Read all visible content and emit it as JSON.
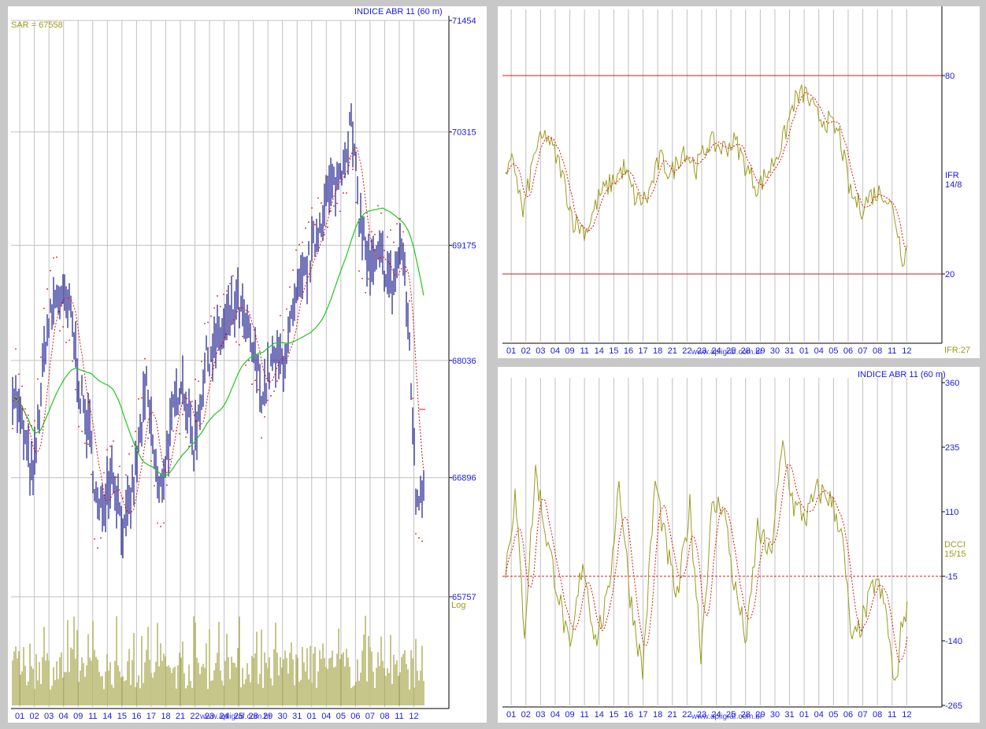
{
  "colors": {
    "background": "#c8c8c8",
    "axis_text": "#1a1adc",
    "price_bars": "#1a1a8c",
    "sar": "#dc1414",
    "moving_average": "#1ec81e",
    "volume": "#a0a03c",
    "oscillator": "#9b9b1e",
    "signal": "#dc1414",
    "level_line": "#c81e1e",
    "grid": "#c0c0c0"
  },
  "main": {
    "title": "INDICE ABR 11 (60 m)",
    "sar_label": "SAR = 67558",
    "scale_label": "Log",
    "watermark": "www.apligraf.com.br"
  },
  "ifr": {
    "label_line1": "IFR",
    "label_line2": "14/8",
    "current": "IFR:27"
  },
  "dcci": {
    "title": "INDICE ABR 11 (60 m)",
    "label_line1": "DCCI",
    "label_line2": "15/15"
  },
  "chart_data": [
    {
      "id": "price",
      "type": "bar",
      "title": "INDICE ABR 11 (60 m)",
      "ylim": [
        65757,
        71454
      ],
      "scale": "log",
      "y_ticks": [
        71454,
        70315,
        69175,
        68036,
        66896,
        65757
      ],
      "x_tick_labels": [
        "01",
        "02",
        "03",
        "04",
        "09",
        "11",
        "14",
        "15",
        "16",
        "17",
        "18",
        "21",
        "22",
        "23",
        "24",
        "25",
        "28",
        "29",
        "30",
        "31",
        "01",
        "04",
        "05",
        "06",
        "07",
        "08",
        "11",
        "12"
      ],
      "series": [
        {
          "name": "SAR",
          "value": 67558
        },
        {
          "name": "Volume"
        }
      ]
    },
    {
      "id": "ifr",
      "type": "line",
      "ylim": [
        0,
        100
      ],
      "y_ticks": [
        80,
        20
      ],
      "levels": [
        80,
        20
      ],
      "x_tick_labels": [
        "01",
        "02",
        "03",
        "04",
        "09",
        "11",
        "14",
        "15",
        "16",
        "17",
        "18",
        "21",
        "22",
        "23",
        "24",
        "25",
        "28",
        "29",
        "30",
        "31",
        "01",
        "04",
        "05",
        "06",
        "07",
        "08",
        "11",
        "12"
      ],
      "series": [
        {
          "name": "IFR",
          "latest": 27
        },
        {
          "name": "signal"
        }
      ]
    },
    {
      "id": "dcci",
      "type": "line",
      "title": "INDICE ABR 11 (60 m)",
      "ylim": [
        -265,
        360
      ],
      "y_ticks": [
        360,
        235,
        110,
        -15,
        -140,
        -265
      ],
      "x_tick_labels": [
        "01",
        "02",
        "03",
        "04",
        "09",
        "11",
        "14",
        "15",
        "16",
        "17",
        "18",
        "21",
        "22",
        "23",
        "24",
        "25",
        "28",
        "29",
        "30",
        "31",
        "01",
        "04",
        "05",
        "06",
        "07",
        "08",
        "11",
        "12"
      ],
      "series": [
        {
          "name": "DCCI"
        },
        {
          "name": "signal"
        }
      ]
    }
  ]
}
